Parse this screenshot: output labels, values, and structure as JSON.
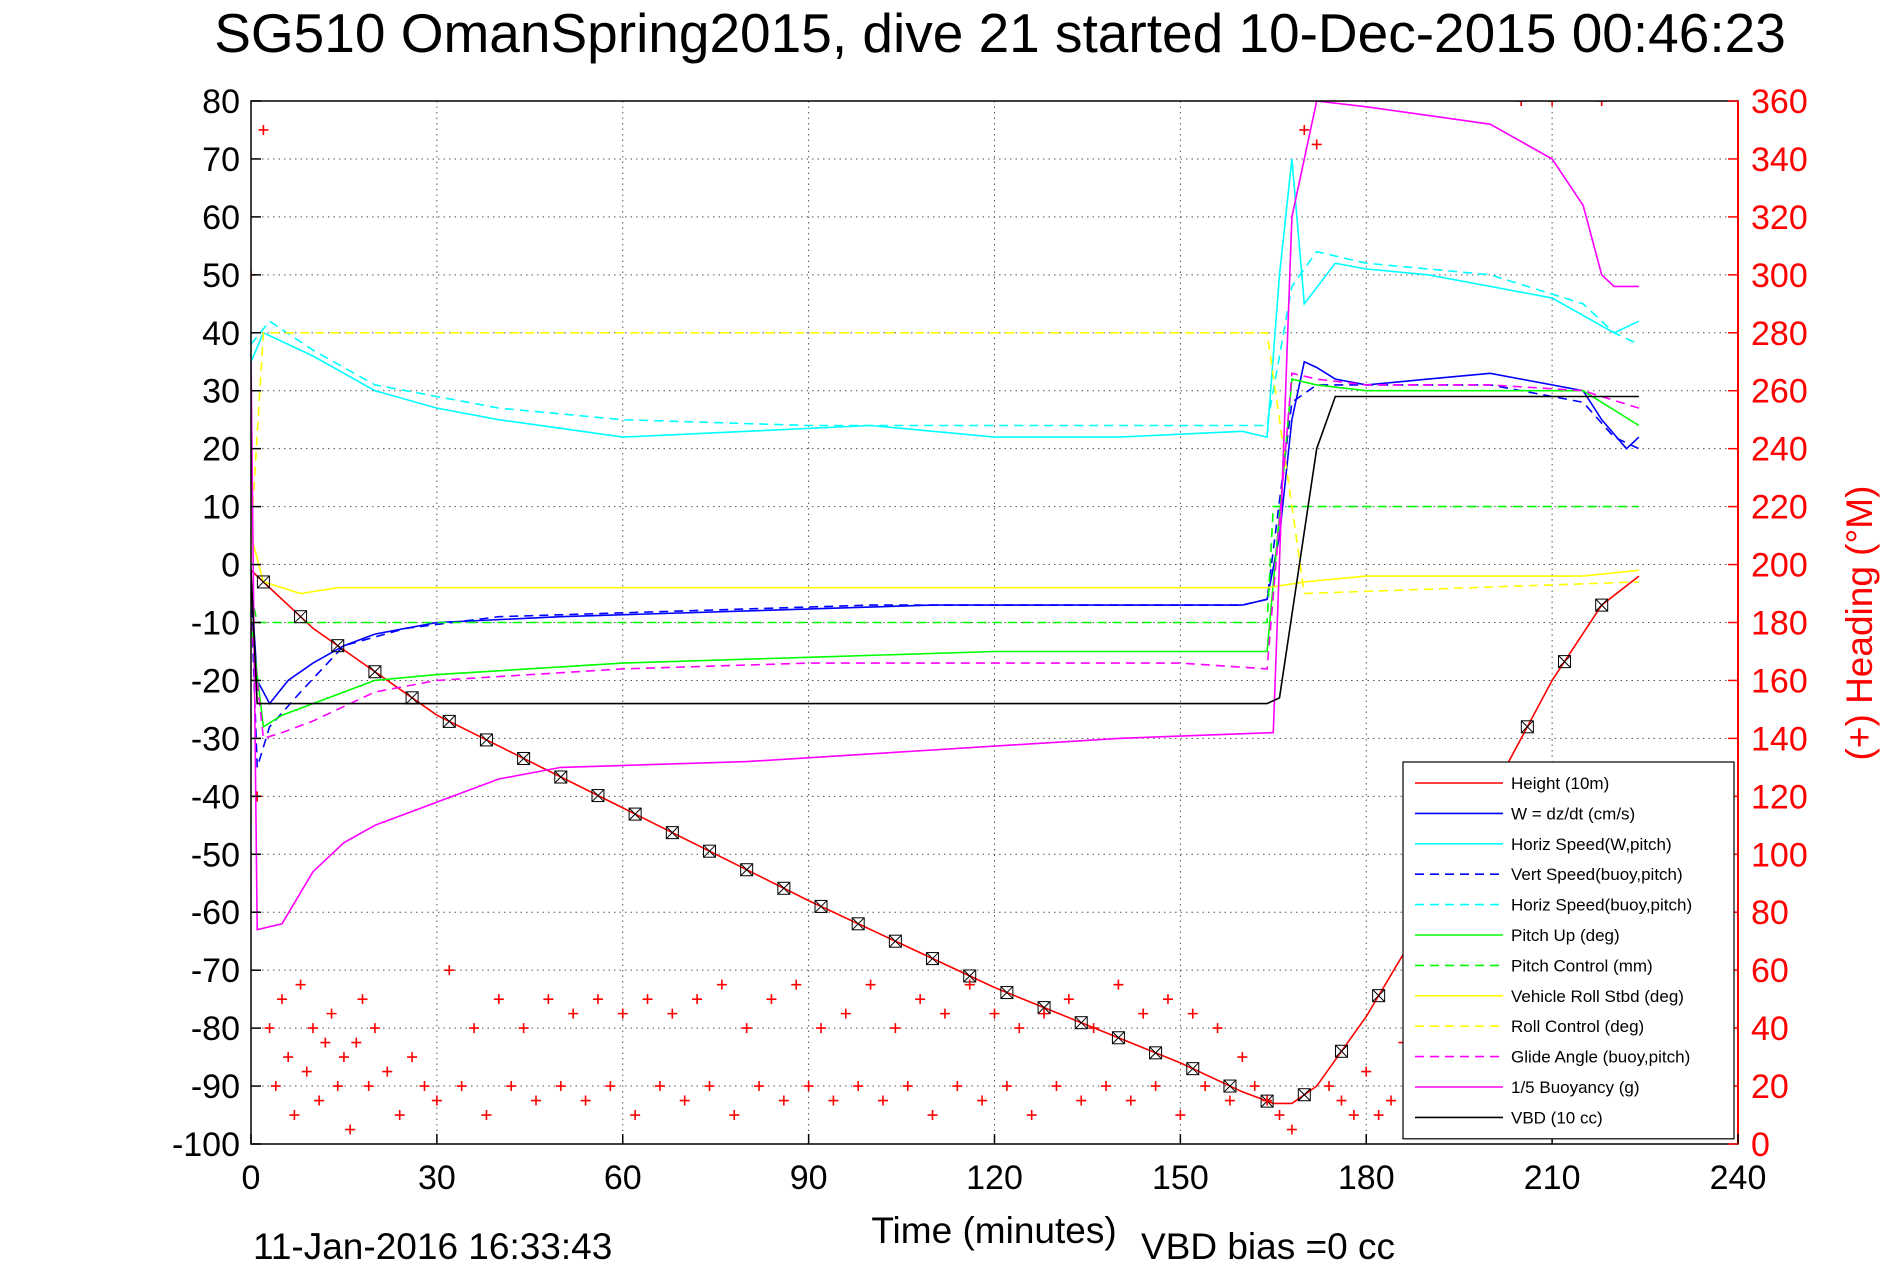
{
  "chart_data": {
    "type": "line",
    "title": "SG510 OmanSpring2015, dive 21 started 10-Dec-2015 00:46:23",
    "xlabel": "Time (minutes)",
    "ylabel": "",
    "y2label": "(+) Heading (°M)",
    "xlim": [
      0,
      240
    ],
    "ylim": [
      -100,
      80
    ],
    "y2lim": [
      0,
      360
    ],
    "x_ticks": [
      "0",
      "30",
      "60",
      "90",
      "120",
      "150",
      "180",
      "210",
      "240"
    ],
    "y_ticks": [
      "80",
      "70",
      "60",
      "50",
      "40",
      "30",
      "20",
      "10",
      "0",
      "-10",
      "-20",
      "-30",
      "-40",
      "-50",
      "-60",
      "-70",
      "-80",
      "-90",
      "-100"
    ],
    "y2_ticks": [
      "360",
      "340",
      "320",
      "300",
      "280",
      "260",
      "240",
      "220",
      "200",
      "180",
      "160",
      "140",
      "120",
      "100",
      "80",
      "60",
      "40",
      "20",
      "0"
    ],
    "grid": true,
    "legend_position": "bottom-right",
    "series": [
      {
        "name": "Height (10m)",
        "color": "#ff0000",
        "style": "solid",
        "x": [
          0,
          10,
          30,
          60,
          90,
          120,
          150,
          160,
          165,
          168,
          172,
          180,
          190,
          200,
          210,
          218,
          224
        ],
        "y": [
          -1,
          -11,
          -26,
          -42,
          -58,
          -73,
          -86,
          -91,
          -93,
          -93,
          -90,
          -78,
          -60,
          -40,
          -20,
          -7,
          -2
        ]
      },
      {
        "name": "W = dz/dt (cm/s)",
        "color": "#0000ff",
        "style": "solid",
        "x": [
          0,
          1,
          3,
          6,
          10,
          15,
          20,
          30,
          50,
          80,
          110,
          140,
          160,
          164,
          166,
          168,
          170,
          172,
          175,
          180,
          190,
          200,
          205,
          210,
          215,
          218,
          222,
          224
        ],
        "y": [
          -3,
          -20,
          -24,
          -20,
          -17,
          -14,
          -12,
          -10,
          -9,
          -8,
          -7,
          -7,
          -7,
          -6,
          5,
          25,
          35,
          34,
          32,
          31,
          32,
          33,
          32,
          31,
          30,
          25,
          20,
          22
        ]
      },
      {
        "name": "Horiz Speed(W,pitch)",
        "color": "#00ffff",
        "style": "solid",
        "x": [
          0,
          2,
          6,
          10,
          20,
          30,
          40,
          60,
          80,
          100,
          120,
          140,
          160,
          164,
          166,
          168,
          170,
          175,
          180,
          190,
          200,
          210,
          215,
          220,
          224
        ],
        "y": [
          35,
          40,
          38,
          36,
          30,
          27,
          25,
          22,
          23,
          24,
          22,
          22,
          23,
          22,
          50,
          70,
          45,
          52,
          51,
          50,
          48,
          46,
          43,
          40,
          42
        ]
      },
      {
        "name": "Vert Speed(buoy,pitch)",
        "color": "#0000ff",
        "style": "dashed",
        "x": [
          0,
          1,
          3,
          8,
          15,
          25,
          40,
          70,
          100,
          130,
          160,
          164,
          168,
          172,
          180,
          200,
          215,
          220,
          224
        ],
        "y": [
          -5,
          -35,
          -28,
          -22,
          -14,
          -11,
          -9,
          -8,
          -7,
          -7,
          -7,
          -6,
          28,
          31,
          31,
          31,
          28,
          22,
          20
        ]
      },
      {
        "name": "Horiz Speed(buoy,pitch)",
        "color": "#00ffff",
        "style": "dashed",
        "x": [
          0,
          3,
          10,
          20,
          40,
          60,
          90,
          120,
          150,
          164,
          168,
          172,
          180,
          200,
          215,
          220,
          224
        ],
        "y": [
          38,
          42,
          37,
          31,
          27,
          25,
          24,
          24,
          24,
          24,
          48,
          54,
          52,
          50,
          45,
          40,
          38
        ]
      },
      {
        "name": "Pitch Up (deg)",
        "color": "#00ff00",
        "style": "solid",
        "x": [
          0,
          2,
          5,
          10,
          20,
          30,
          60,
          90,
          120,
          150,
          164,
          168,
          172,
          180,
          200,
          215,
          224
        ],
        "y": [
          -10,
          -28,
          -26,
          -24,
          -20,
          -19,
          -17,
          -16,
          -15,
          -15,
          -15,
          32,
          31,
          30,
          30,
          30,
          24
        ]
      },
      {
        "name": "Pitch Control (mm)",
        "color": "#00ff00",
        "style": "dashed",
        "x": [
          0,
          1,
          5,
          164,
          165,
          224
        ],
        "y": [
          -5,
          -10,
          -10,
          -10,
          10,
          10
        ]
      },
      {
        "name": "Vehicle Roll Stbd (deg)",
        "color": "#ffff00",
        "style": "solid",
        "x": [
          0,
          2,
          8,
          14,
          20,
          30,
          60,
          90,
          120,
          150,
          164,
          170,
          180,
          200,
          215,
          224
        ],
        "y": [
          5,
          -3,
          -5,
          -4,
          -4,
          -4,
          -4,
          -4,
          -4,
          -4,
          -4,
          -3,
          -2,
          -2,
          -2,
          -1
        ]
      },
      {
        "name": "Roll Control (deg)",
        "color": "#ffff00",
        "style": "dashed",
        "x": [
          0,
          2,
          164,
          170,
          224
        ],
        "y": [
          5,
          40,
          40,
          -5,
          -3
        ]
      },
      {
        "name": "Glide Angle (buoy,pitch)",
        "color": "#ff00ff",
        "style": "dashed",
        "x": [
          0,
          2,
          5,
          10,
          20,
          30,
          60,
          90,
          120,
          150,
          164,
          168,
          172,
          180,
          200,
          215,
          224
        ],
        "y": [
          -10,
          -30,
          -29,
          -27,
          -22,
          -20,
          -18,
          -17,
          -17,
          -17,
          -18,
          33,
          32,
          31,
          31,
          30,
          27
        ]
      },
      {
        "name": "1/5 Buoyancy (g)",
        "color": "#ff00ff",
        "style": "solid",
        "x": [
          0,
          1,
          5,
          10,
          15,
          20,
          25,
          30,
          40,
          50,
          80,
          110,
          140,
          165,
          168,
          172,
          180,
          200,
          210,
          215,
          218,
          220,
          224
        ],
        "y": [
          35,
          -63,
          -62,
          -53,
          -48,
          -45,
          -43,
          -41,
          -37,
          -35,
          -34,
          -32,
          -30,
          -29,
          60,
          80,
          79,
          76,
          70,
          62,
          50,
          48,
          48
        ]
      },
      {
        "name": "VBD (10 cc)",
        "color": "#000000",
        "style": "solid",
        "x": [
          0,
          1,
          164,
          166,
          172,
          175,
          224
        ],
        "y": [
          -1,
          -24,
          -24,
          -23,
          20,
          29,
          29
        ]
      }
    ],
    "heading": {
      "name": "(+) Heading (°M)",
      "color": "#ff0000",
      "marker": "+",
      "axis": "right",
      "x": [
        0,
        1,
        2,
        3,
        4,
        5,
        6,
        7,
        8,
        9,
        10,
        11,
        12,
        13,
        14,
        15,
        16,
        17,
        18,
        19,
        20,
        22,
        24,
        26,
        28,
        30,
        32,
        34,
        36,
        38,
        40,
        42,
        44,
        46,
        48,
        50,
        52,
        54,
        56,
        58,
        60,
        62,
        64,
        66,
        68,
        70,
        72,
        74,
        76,
        78,
        80,
        82,
        84,
        86,
        88,
        90,
        92,
        94,
        96,
        98,
        100,
        102,
        104,
        106,
        108,
        110,
        112,
        114,
        116,
        118,
        120,
        122,
        124,
        126,
        128,
        130,
        132,
        134,
        136,
        138,
        140,
        142,
        144,
        146,
        148,
        150,
        152,
        154,
        156,
        158,
        160,
        162,
        164,
        166,
        168,
        170,
        172,
        174,
        176,
        178,
        180,
        182,
        184,
        186,
        190,
        200,
        205,
        210,
        215,
        218
      ],
      "y": [
        300,
        120,
        350,
        40,
        20,
        50,
        30,
        10,
        55,
        25,
        40,
        15,
        35,
        45,
        20,
        30,
        5,
        35,
        50,
        20,
        40,
        25,
        10,
        30,
        20,
        15,
        60,
        20,
        40,
        10,
        50,
        20,
        40,
        15,
        50,
        20,
        45,
        15,
        50,
        20,
        45,
        10,
        50,
        20,
        45,
        15,
        50,
        20,
        55,
        10,
        40,
        20,
        50,
        15,
        55,
        20,
        40,
        15,
        45,
        20,
        55,
        15,
        40,
        20,
        50,
        10,
        45,
        20,
        55,
        15,
        45,
        20,
        40,
        10,
        45,
        20,
        50,
        15,
        40,
        20,
        55,
        15,
        45,
        20,
        50,
        10,
        45,
        20,
        40,
        15,
        30,
        20,
        15,
        10,
        5,
        350,
        345,
        20,
        15,
        10,
        25,
        10,
        15,
        35,
        30,
        40,
        360,
        360,
        50,
        360
      ]
    }
  },
  "footer": {
    "timestamp": "11-Jan-2016 16:33:43",
    "vbd_bias": "VBD bias =0 cc"
  }
}
